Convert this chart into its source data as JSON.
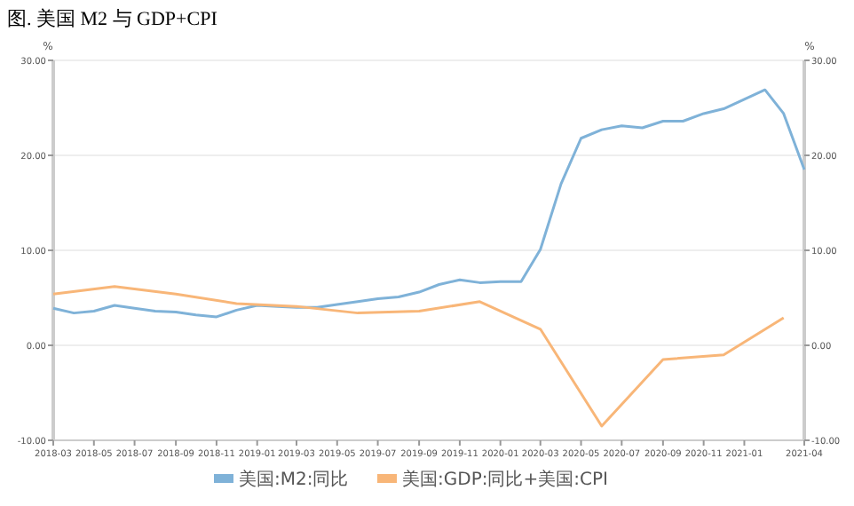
{
  "chart_data": {
    "type": "line",
    "title": "图. 美国 M2 与 GDP+CPI",
    "ylabel": "%",
    "y2label": "%",
    "xlim": [
      "2018-03",
      "2021-04"
    ],
    "xticks": [
      {
        "value": "2018-03",
        "label": "2018-03"
      },
      {
        "value": "2018-05",
        "label": "2018-05"
      },
      {
        "value": "2018-07",
        "label": "2018-07"
      },
      {
        "value": "2018-09",
        "label": "2018-09"
      },
      {
        "value": "2018-11",
        "label": "2018-11"
      },
      {
        "value": "2019-01",
        "label": "2019-01"
      },
      {
        "value": "2019-03",
        "label": "2019-03"
      },
      {
        "value": "2019-05",
        "label": "2019-05"
      },
      {
        "value": "2019-07",
        "label": "2019-07"
      },
      {
        "value": "2019-09",
        "label": "2019-09"
      },
      {
        "value": "2019-11",
        "label": "2019-11"
      },
      {
        "value": "2020-01",
        "label": "2020-01"
      },
      {
        "value": "2020-03",
        "label": "2020-03"
      },
      {
        "value": "2020-05",
        "label": "2020-05"
      },
      {
        "value": "2020-07",
        "label": "2020-07"
      },
      {
        "value": "2020-09",
        "label": "2020-09"
      },
      {
        "value": "2020-11",
        "label": "2020-11"
      },
      {
        "value": "2021-01",
        "label": "2021-01"
      },
      {
        "value": "2021-04",
        "label": "2021-04"
      }
    ],
    "ylim": [
      -10,
      30
    ],
    "yticks": [
      {
        "value": -10,
        "label": "-10.00"
      },
      {
        "value": 0,
        "label": "0.00"
      },
      {
        "value": 10,
        "label": "10.00"
      },
      {
        "value": 20,
        "label": "20.00"
      },
      {
        "value": 30,
        "label": "30.00"
      }
    ],
    "y2lim": [
      -10,
      30
    ],
    "y2ticks": [
      {
        "value": -10,
        "label": "-10.00"
      },
      {
        "value": 0,
        "label": "0.00"
      },
      {
        "value": 10,
        "label": "10.00"
      },
      {
        "value": 20,
        "label": "20.00"
      },
      {
        "value": 30,
        "label": "30.00"
      }
    ],
    "grid": "y",
    "legend": "bottom",
    "series": [
      {
        "name": "美国:M2:同比",
        "color": "#7fb2d8",
        "x": [
          "2018-03",
          "2018-04",
          "2018-05",
          "2018-06",
          "2018-07",
          "2018-08",
          "2018-09",
          "2018-10",
          "2018-11",
          "2018-12",
          "2019-01",
          "2019-02",
          "2019-03",
          "2019-04",
          "2019-05",
          "2019-06",
          "2019-07",
          "2019-08",
          "2019-09",
          "2019-10",
          "2019-11",
          "2019-12",
          "2020-01",
          "2020-02",
          "2020-03",
          "2020-04",
          "2020-05",
          "2020-06",
          "2020-07",
          "2020-08",
          "2020-09",
          "2020-10",
          "2020-11",
          "2020-12",
          "2021-01",
          "2021-02",
          "2021-03",
          "2021-04"
        ],
        "values": [
          3.9,
          3.4,
          3.6,
          4.2,
          3.9,
          3.6,
          3.5,
          3.2,
          3.0,
          3.7,
          4.2,
          4.1,
          4.0,
          4.0,
          4.3,
          4.6,
          4.9,
          5.1,
          5.6,
          6.4,
          6.9,
          6.6,
          6.7,
          6.7,
          10.1,
          17.0,
          21.8,
          22.7,
          23.1,
          22.9,
          23.6,
          23.6,
          24.4,
          24.9,
          25.9,
          26.9,
          24.4,
          18.5
        ]
      },
      {
        "name": "美国:GDP:同比+美国:CPI",
        "color": "#f8b678",
        "x": [
          "2018-03",
          "2018-06",
          "2018-09",
          "2018-12",
          "2019-03",
          "2019-06",
          "2019-09",
          "2019-12",
          "2020-03",
          "2020-06",
          "2020-09",
          "2020-12",
          "2021-03"
        ],
        "values": [
          5.4,
          6.2,
          5.4,
          4.4,
          4.1,
          3.4,
          3.6,
          4.6,
          1.7,
          -8.5,
          -1.5,
          -1.0,
          2.9
        ]
      }
    ]
  }
}
